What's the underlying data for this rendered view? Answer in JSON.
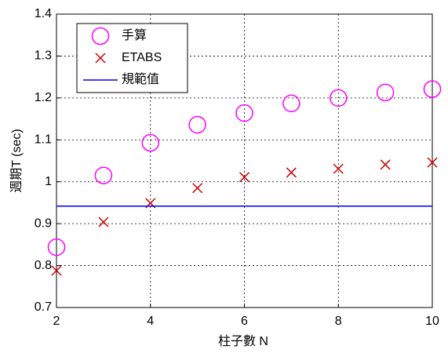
{
  "chart_data": {
    "type": "scatter",
    "x_label": "柱子數 N",
    "y_label": "週期T (sec)",
    "x": [
      2,
      3,
      4,
      5,
      6,
      7,
      8,
      9,
      10
    ],
    "series": [
      {
        "name": "手算",
        "color": "#ff00ff",
        "marker": "circle",
        "values": [
          0.844,
          1.015,
          1.093,
          1.136,
          1.164,
          1.187,
          1.2,
          1.213,
          1.221
        ]
      },
      {
        "name": "ETABS",
        "color": "#cc0000",
        "marker": "x",
        "values": [
          0.788,
          0.904,
          0.949,
          0.985,
          1.011,
          1.022,
          1.031,
          1.041,
          1.046
        ]
      },
      {
        "name": "規範值",
        "color": "#0000ff",
        "marker": "line",
        "x": [
          2,
          10
        ],
        "values": [
          0.942,
          0.942
        ]
      }
    ],
    "xlim": [
      2,
      10
    ],
    "xticks": [
      2,
      4,
      6,
      8,
      10
    ],
    "ylim": [
      0.7,
      1.4
    ],
    "yticks": [
      0.7,
      0.8,
      0.9,
      1,
      1.1,
      1.2,
      1.3,
      1.4
    ],
    "grid": true,
    "legend": "top-left"
  }
}
